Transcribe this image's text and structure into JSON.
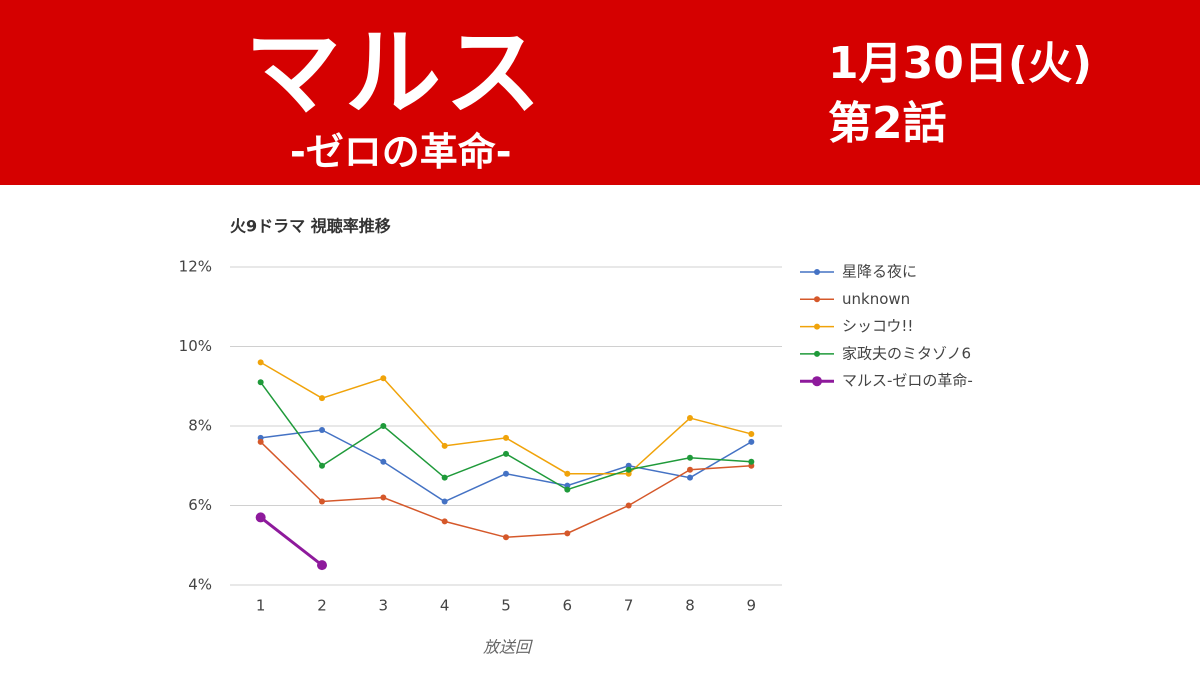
{
  "header": {
    "title": "マルス",
    "subtitle": "-ゼロの革命-",
    "date": "1月30日(火)",
    "episode": "第2話"
  },
  "chart_data": {
    "type": "line",
    "title": "火9ドラマ 視聴率推移",
    "x_label": "放送回",
    "categories": [
      "1",
      "2",
      "3",
      "4",
      "5",
      "6",
      "7",
      "8",
      "9"
    ],
    "series": [
      {
        "name": "星降る夜に",
        "color": "#4472c4",
        "line_width": 1.5,
        "marker_size": 3,
        "values": [
          7.7,
          7.9,
          7.1,
          6.1,
          6.8,
          6.5,
          7.0,
          6.7,
          7.6
        ]
      },
      {
        "name": "unknown",
        "color": "#d5582a",
        "line_width": 1.5,
        "marker_size": 3,
        "values": [
          7.6,
          6.1,
          6.2,
          5.6,
          5.2,
          5.3,
          6.0,
          6.9,
          7.0
        ]
      },
      {
        "name": "シッコウ!!",
        "color": "#f0a30a",
        "line_width": 1.5,
        "marker_size": 3,
        "values": [
          9.6,
          8.7,
          9.2,
          7.5,
          7.7,
          6.8,
          6.8,
          8.2,
          7.8
        ]
      },
      {
        "name": "家政夫のミタゾノ6",
        "color": "#1f9a3a",
        "line_width": 1.5,
        "marker_size": 3,
        "values": [
          9.1,
          7.0,
          8.0,
          6.7,
          7.3,
          6.4,
          6.9,
          7.2,
          7.1
        ]
      },
      {
        "name": "マルス-ゼロの革命-",
        "color": "#8e1a9c",
        "line_width": 3,
        "marker_size": 5,
        "values": [
          5.7,
          4.5,
          null,
          null,
          null,
          null,
          null,
          null,
          null
        ]
      }
    ],
    "ylim": [
      4,
      12
    ],
    "yticks": [
      {
        "value": 4,
        "label": "4%"
      },
      {
        "value": 6,
        "label": "6%"
      },
      {
        "value": 8,
        "label": "8%"
      },
      {
        "value": 10,
        "label": "10%"
      },
      {
        "value": 12,
        "label": "12%"
      }
    ],
    "grid": true,
    "legend": "right"
  }
}
